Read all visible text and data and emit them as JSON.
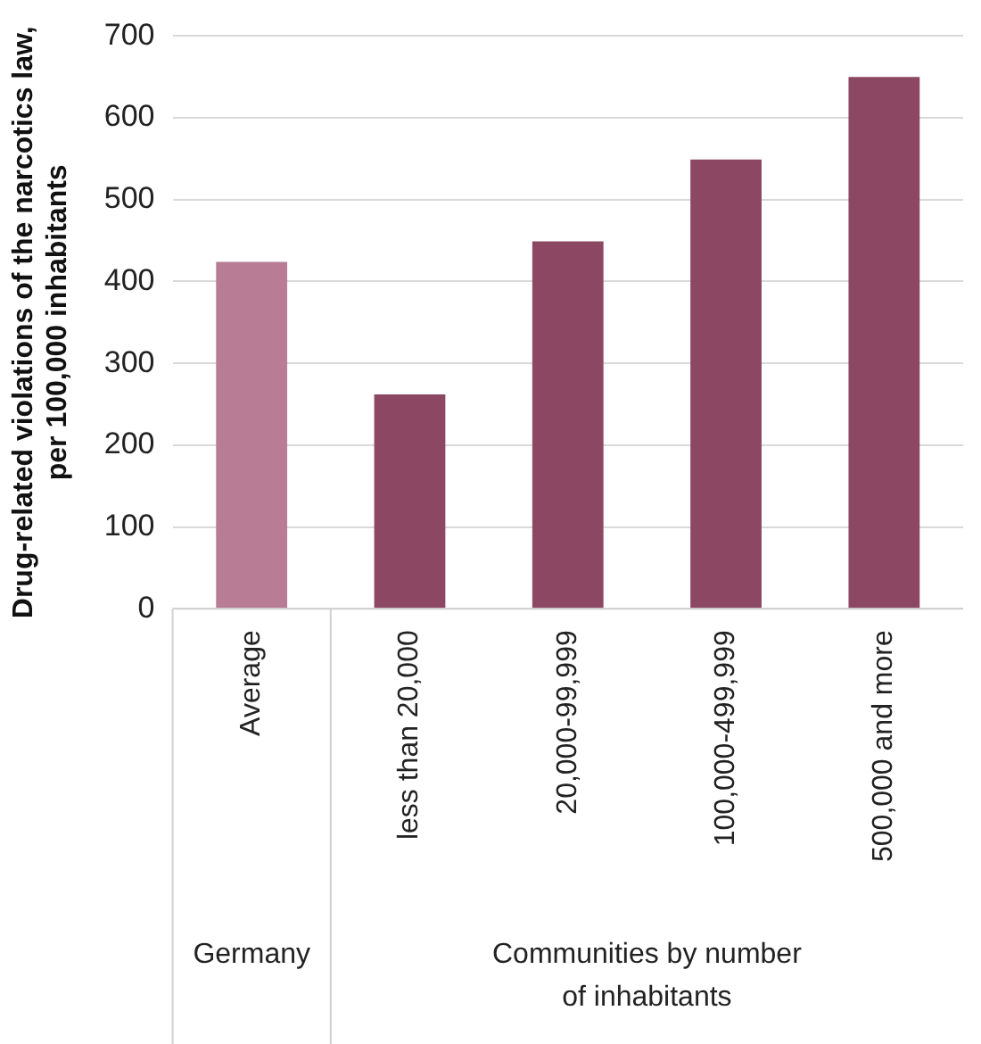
{
  "chart_data": {
    "type": "bar",
    "ylabel": "Drug-related violations of the narcotics law,\nper 100,000 inhabitants",
    "categories": [
      "Average",
      "less than 20,000",
      "20,000-99,999",
      "100,000-499,999",
      "500,000 and more"
    ],
    "values": [
      424,
      262,
      449,
      549,
      650
    ],
    "colors": [
      "#b87c94",
      "#8c4763",
      "#8c4763",
      "#8c4763",
      "#8c4763"
    ],
    "ylim": [
      0,
      700
    ],
    "yticks": [
      0,
      100,
      200,
      300,
      400,
      500,
      600,
      700
    ],
    "grid": "y",
    "legend": false,
    "annotations": [
      "Germany",
      "Communities by number\nof inhabitants"
    ]
  }
}
